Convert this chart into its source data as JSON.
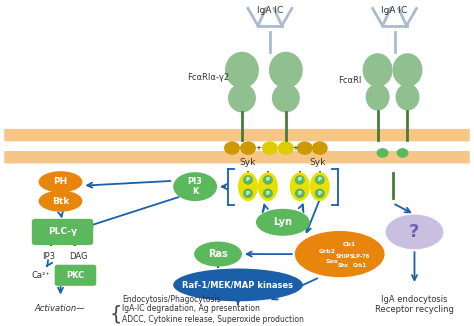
{
  "bg_color": "#ffffff",
  "membrane_color": "#f5c07a",
  "arrow_color": "#1a5fa8",
  "green_color": "#5cb85c",
  "orange_color": "#e8850c",
  "yellow_color": "#e8e000",
  "blue_ellipse": "#1a5fa8",
  "purple_color": "#b8aad8",
  "receptor_green": "#90c090",
  "receptor_stem": "#4a7a3a",
  "IgA_IC_label": "IgA IC",
  "FcaRIa_label": "FcαRIα-γ2",
  "FcaRI_label": "FcαRI",
  "Syk_label": "Syk",
  "PI3K_label": "PI3\nK",
  "PH_label": "PH",
  "Btk_label": "Btk",
  "PLCy_label": "PLC-γ",
  "IP3_label": "IP3",
  "DAG_label": "DAG",
  "Ca_label": "Ca²⁺",
  "PKC_label": "PKC",
  "Lyn_label": "Lyn",
  "Ras_label": "Ras",
  "Raf_label": "Raf-1/MEK/MAP kinases",
  "question_label": "?",
  "endocytosis_label": "IgA endocytosis\nReceptor recycling",
  "endo_phago": "Endocytosis/Phagocytosis",
  "IgA_degrad": "IgA-IC degradation, Ag presentation",
  "ADCC": "ADCC, Cytokine release, Superoxide production"
}
